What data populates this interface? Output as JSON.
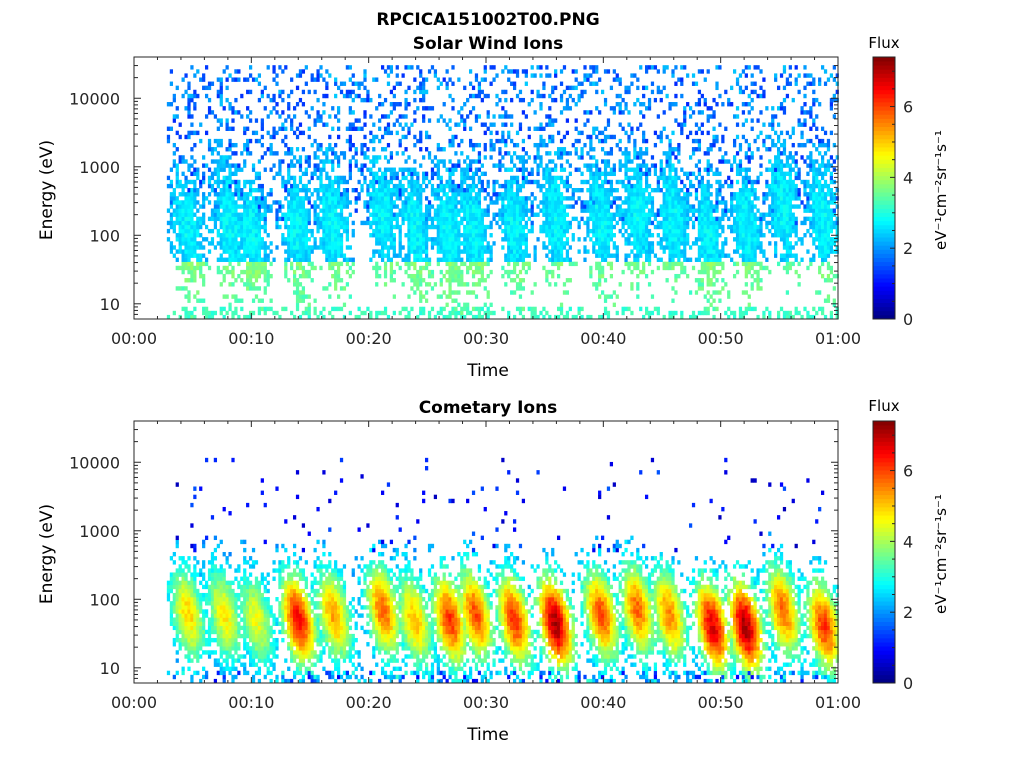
{
  "figure": {
    "filename_title": "RPCICA151002T00.PNG"
  },
  "chart_data": [
    {
      "type": "heatmap",
      "title": "Solar Wind Ions",
      "xlabel": "Time",
      "ylabel": "Energy (eV)",
      "x_tick_labels": [
        "00:00",
        "00:10",
        "00:20",
        "00:30",
        "00:40",
        "00:50",
        "01:00"
      ],
      "x_range_minutes": [
        0,
        60
      ],
      "y_scale": "log",
      "y_tick_values": [
        10,
        100,
        1000,
        10000
      ],
      "y_tick_labels": [
        "10",
        "100",
        "1000",
        "10000"
      ],
      "y_range": [
        6,
        40000
      ],
      "data_start_minute": 2.8,
      "colorbar": {
        "title": "Flux",
        "label": "eV⁻¹cm⁻²sr⁻¹s⁻¹",
        "ticks": [
          0,
          2,
          4,
          6
        ],
        "tick_labels": [
          "0",
          "2",
          "4",
          "6"
        ],
        "range": [
          0,
          7.4
        ],
        "colormap": "jet"
      },
      "bursts_minutes": [
        4.5,
        8.0,
        9.9,
        13.8,
        16.8,
        21.1,
        23.8,
        26.7,
        28.8,
        32.3,
        35.8,
        39.7,
        42.8,
        45.9,
        48.8,
        52.1,
        55.2,
        58.6
      ],
      "bursts_peak_energy_eV": [
        120,
        150,
        110,
        130,
        150,
        200,
        130,
        110,
        120,
        140,
        180,
        160,
        200,
        180,
        110,
        130,
        250,
        170
      ],
      "background": {
        "energy_range_eV": [
          150,
          30000
        ],
        "flux": 1.8
      },
      "baseline_energy_eV": 6
    },
    {
      "type": "heatmap",
      "title": "Cometary Ions",
      "xlabel": "Time",
      "ylabel": "Energy (eV)",
      "x_tick_labels": [
        "00:00",
        "00:10",
        "00:20",
        "00:30",
        "00:40",
        "00:50",
        "01:00"
      ],
      "x_range_minutes": [
        0,
        60
      ],
      "y_scale": "log",
      "y_tick_values": [
        10,
        100,
        1000,
        10000
      ],
      "y_tick_labels": [
        "10",
        "100",
        "1000",
        "10000"
      ],
      "y_range": [
        6,
        40000
      ],
      "data_start_minute": 2.8,
      "colorbar": {
        "title": "Flux",
        "label": "eV⁻¹cm⁻²sr⁻¹s⁻¹",
        "ticks": [
          0,
          2,
          4,
          6
        ],
        "tick_labels": [
          "0",
          "2",
          "4",
          "6"
        ],
        "range": [
          0,
          7.4
        ],
        "colormap": "jet"
      },
      "bursts_minutes": [
        4.5,
        7.6,
        10.3,
        13.9,
        16.9,
        21.1,
        23.8,
        26.8,
        29.0,
        32.3,
        35.8,
        39.7,
        42.8,
        45.5,
        49.2,
        52.0,
        55.2,
        58.7
      ],
      "bursts_peak_flux": [
        4.6,
        4.4,
        4.2,
        6.2,
        5.0,
        5.4,
        4.8,
        5.8,
        5.6,
        5.8,
        6.8,
        5.6,
        5.4,
        5.2,
        6.4,
        6.8,
        5.4,
        5.8
      ],
      "bursts_peak_energy_eV": [
        60,
        60,
        50,
        50,
        60,
        70,
        50,
        50,
        60,
        50,
        45,
        60,
        70,
        60,
        40,
        40,
        70,
        40
      ],
      "background": {
        "energy_range_eV": [
          500,
          12000
        ],
        "flux": 1.0
      },
      "baseline_energy_eV": 6
    }
  ]
}
